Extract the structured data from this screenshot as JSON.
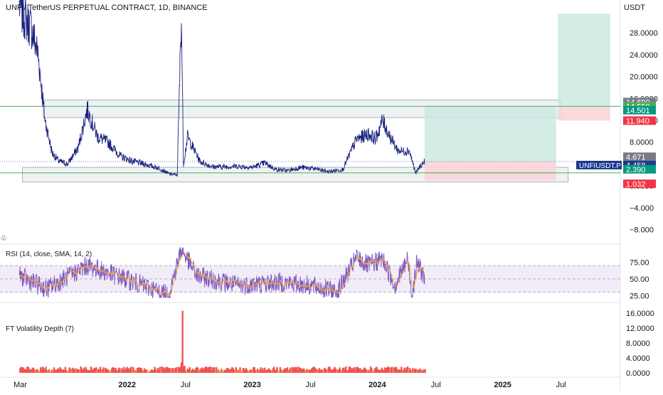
{
  "header": {
    "title": "UNFI/ TetherUS PERPETUAL CONTRACT, 1D, BINANCE",
    "currency": "USDT"
  },
  "colors": {
    "price_line": "#1a237e",
    "green_line": "#4caf50",
    "zone_fill": "#e8ecef",
    "zone_stroke": "#9aa0a6",
    "profit_fill": "#cde9e2",
    "loss_fill": "#f8d5d9",
    "rsi_line": "#7e57c2",
    "rsi_ma": "#f9a825",
    "rsi_band": "#ede7f6",
    "vol_fill": "#ef5350",
    "vol_low": "#ff9800",
    "badge_gray": "#787b86",
    "badge_green": "#089981",
    "badge_red": "#f23645",
    "badge_navy": "#1c3a8c",
    "badge_blue": "#2962ff"
  },
  "price_badges": [
    {
      "label": "14.690",
      "value": 14.69,
      "color": "#787b86",
      "y_nudge": -1
    },
    {
      "label": "14.559",
      "value": 14.559,
      "color": "#4caf50",
      "y_nudge": 0
    },
    {
      "label": "14.501",
      "value": 14.501,
      "color": "#089981",
      "y_nudge": 1
    },
    {
      "label": "11.940",
      "value": 11.94,
      "color": "#f23645",
      "y_nudge": 0
    },
    {
      "label": "4.671",
      "value": 4.671,
      "color": "#787b86",
      "y_nudge": -1
    },
    {
      "label": "4.458",
      "value": 4.458,
      "color": "#1c3a8c",
      "y_nudge": 1
    },
    {
      "label": "2.390",
      "value": 2.39,
      "color": "#089981",
      "y_nudge": -1
    },
    {
      "label": "1.032",
      "value": 1.032,
      "color": "#f23645",
      "y_nudge": 1
    }
  ],
  "symbol_badge": {
    "label": "UNFIUSDT.P",
    "value": 4.458
  },
  "chart_data": [
    {
      "name": "price",
      "type": "line",
      "x": [
        "2021-03-01",
        "2021-03-15",
        "2021-04-05",
        "2021-04-25",
        "2021-05-15",
        "2021-06-05",
        "2021-06-25",
        "2021-07-20",
        "2021-08-20",
        "2021-09-15",
        "2021-10-15",
        "2021-11-15",
        "2021-12-20",
        "2022-01-25",
        "2022-03-01",
        "2022-04-15",
        "2022-05-12",
        "2022-06-05",
        "2022-06-17",
        "2022-06-23",
        "2022-07-05",
        "2022-08-10",
        "2022-09-15",
        "2022-10-20",
        "2022-11-25",
        "2023-01-10",
        "2023-02-15",
        "2023-03-20",
        "2023-04-25",
        "2023-06-01",
        "2023-07-15",
        "2023-08-20",
        "2023-10-01",
        "2023-11-10",
        "2023-12-15",
        "2024-01-05",
        "2024-01-25",
        "2024-02-20",
        "2024-03-10",
        "2024-03-25",
        "2024-04-12",
        "2024-05-01",
        "2024-05-15",
        "2024-05-27"
      ],
      "y": [
        33,
        31,
        29,
        24,
        12,
        6,
        4.5,
        4,
        7,
        14,
        9,
        8,
        5.5,
        4.5,
        4,
        3.2,
        2.2,
        2,
        32,
        4,
        9,
        4.5,
        3.5,
        3.5,
        3.6,
        3.4,
        4.2,
        3,
        2.8,
        3.4,
        3.1,
        2.6,
        3.0,
        8.5,
        9.5,
        8.6,
        12,
        8.5,
        6.5,
        6.3,
        6.5,
        2.3,
        3.7,
        4.46
      ],
      "ylim": [
        -10,
        34
      ],
      "yticks": [
        -8,
        -4,
        0,
        4,
        8,
        12,
        16,
        20,
        24,
        28
      ],
      "ytick_labels": [
        "−8.000",
        "−4.000",
        "0.0000",
        "4.0000",
        "8.0000",
        "12.0000",
        "16.0000",
        "20.0000",
        "24.0000",
        "28.0000"
      ],
      "long_position": {
        "start": "2024-05-27",
        "end": "2025-06-15",
        "entry": 4.458,
        "target": 14.501,
        "stop": 1.032
      },
      "long_position_2": {
        "start": "2025-06-20",
        "end": "2025-11-20",
        "entry": 14.559,
        "target": 31.5,
        "stop": 11.94
      },
      "range_zones": [
        {
          "start": "2021-05-10",
          "end": "2025-06-30",
          "top": 15.7,
          "bottom": 12.5
        },
        {
          "start": "2021-03-10",
          "end": "2025-07-20",
          "top": 3.4,
          "bottom": 0.7
        }
      ],
      "support_lines": [
        14.559,
        2.39
      ]
    },
    {
      "name": "rsi",
      "type": "line",
      "title": "RSI (14, close, SMA, 14, 2)",
      "x": [
        "2021-03-01",
        "2021-05-20",
        "2021-09-15",
        "2022-02-01",
        "2022-05-10",
        "2022-06-17",
        "2022-08-01",
        "2022-12-01",
        "2023-04-01",
        "2023-07-01",
        "2023-09-15",
        "2023-11-10",
        "2023-12-15",
        "2024-01-25",
        "2024-03-01",
        "2024-04-08",
        "2024-04-20",
        "2024-05-05",
        "2024-05-27"
      ],
      "y": [
        55,
        35,
        70,
        45,
        25,
        95,
        55,
        40,
        45,
        40,
        30,
        82,
        70,
        80,
        40,
        80,
        25,
        75,
        52
      ],
      "ylim": [
        20,
        100
      ],
      "band": [
        30,
        70
      ],
      "midline": 50,
      "yticks": [
        25,
        50,
        75
      ],
      "ytick_labels": [
        "25.00",
        "50.00",
        "75.00"
      ]
    },
    {
      "name": "volatility",
      "type": "bar",
      "title": "FT Volatility Depth (7)",
      "peak_date": "2022-06-18",
      "peak_value": 16.6,
      "ylim": [
        -0.8,
        17.5
      ],
      "yticks": [
        0,
        4,
        8,
        12,
        16
      ],
      "ytick_labels": [
        "0.0000",
        "4.0000",
        "8.0000",
        "12.0000",
        "16.0000"
      ]
    }
  ],
  "x_axis": {
    "start": "2021-02-10",
    "end": "2025-12-15",
    "ticks": [
      {
        "date": "2021-03-01",
        "label": "Mar",
        "bold": false
      },
      {
        "date": "2022-01-01",
        "label": "2022",
        "bold": true
      },
      {
        "date": "2022-07-01",
        "label": "Jul",
        "bold": false
      },
      {
        "date": "2023-01-01",
        "label": "2023",
        "bold": true
      },
      {
        "date": "2023-07-01",
        "label": "Jul",
        "bold": false
      },
      {
        "date": "2024-01-01",
        "label": "2024",
        "bold": true
      },
      {
        "date": "2024-07-01",
        "label": "Jul",
        "bold": false
      },
      {
        "date": "2025-01-01",
        "label": "2025",
        "bold": true
      },
      {
        "date": "2025-07-01",
        "label": "Jul",
        "bold": false
      }
    ]
  }
}
